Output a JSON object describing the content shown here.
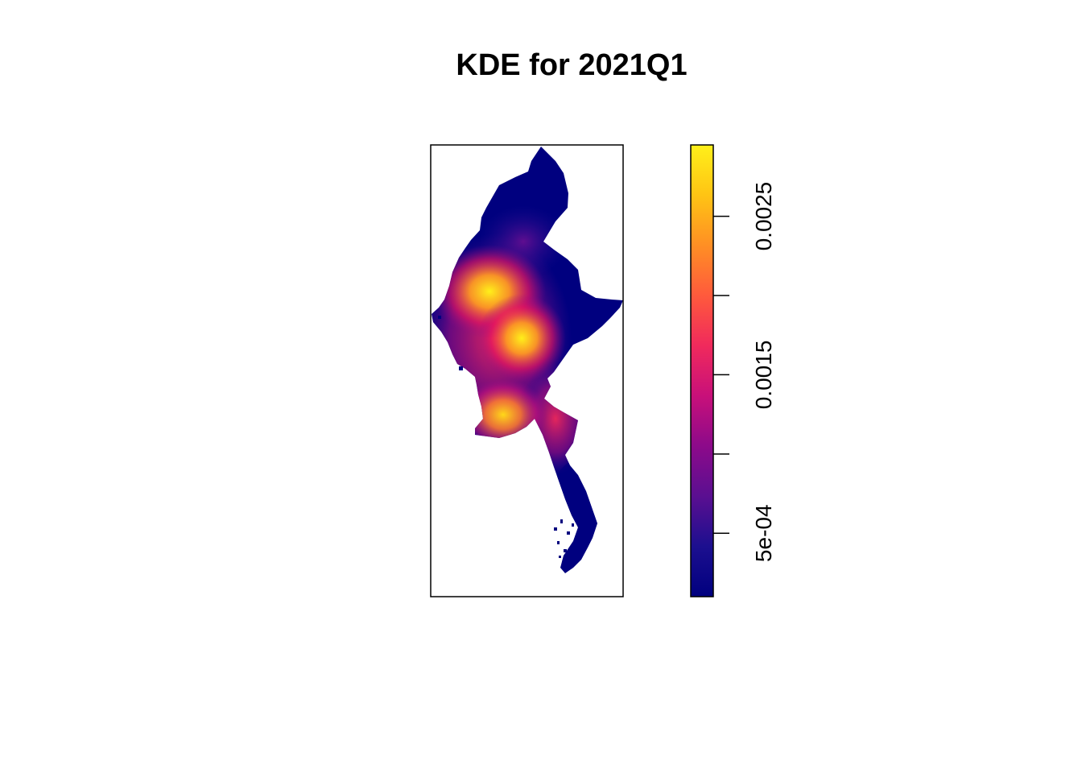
{
  "chart_data": {
    "type": "heatmap",
    "title": "KDE for 2021Q1",
    "xlabel": "",
    "ylabel": "",
    "colormap": "plasma",
    "colorbar": {
      "range": [
        0.0001,
        0.00295
      ],
      "ticks": [
        {
          "value": 0.0005,
          "label": "5e-04"
        },
        {
          "value": 0.001,
          "label": ""
        },
        {
          "value": 0.0015,
          "label": "0.0015"
        },
        {
          "value": 0.002,
          "label": ""
        },
        {
          "value": 0.0025,
          "label": "0.0025"
        }
      ],
      "colors": [
        "#00007f",
        "#1c0f8f",
        "#5a0f91",
        "#8c0a8a",
        "#c8107a",
        "#f02a5c",
        "#ff5a3c",
        "#ff8f24",
        "#ffc414",
        "#fff01a"
      ]
    },
    "density_hotspots": [
      {
        "label": "north-central peak",
        "relative_value": 1.0
      },
      {
        "label": "central peak",
        "relative_value": 0.92
      },
      {
        "label": "delta peak",
        "relative_value": 0.85
      }
    ]
  }
}
